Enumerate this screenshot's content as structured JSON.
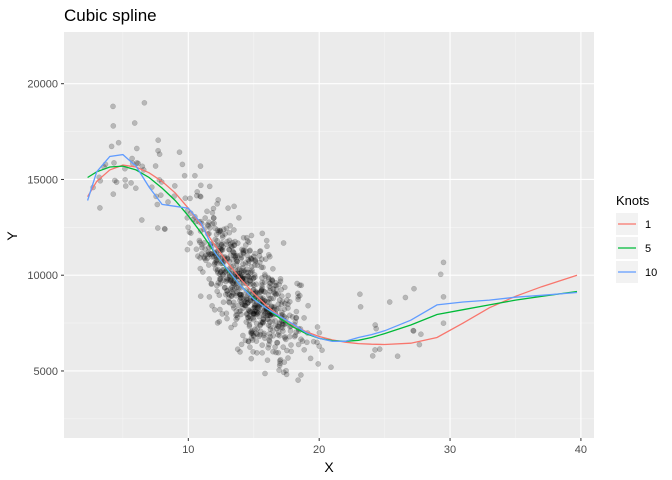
{
  "chart_data": {
    "type": "scatter",
    "title": "Cubic spline",
    "xlabel": "X",
    "ylabel": "Y",
    "xlim": [
      0.5,
      41
    ],
    "ylim": [
      1500,
      22700
    ],
    "x_ticks": [
      10,
      20,
      30,
      40
    ],
    "y_ticks": [
      5000,
      10000,
      15000,
      20000
    ],
    "x_minor_ticks": [
      5,
      15,
      25,
      35
    ],
    "y_minor_ticks": [
      2500,
      7500,
      12500,
      17500
    ],
    "grid": true,
    "legend_position": "right",
    "legend": {
      "title": "Knots",
      "entries": [
        {
          "label": "1",
          "color": "#F8766D"
        },
        {
          "label": "5",
          "color": "#00BA38"
        },
        {
          "label": "10",
          "color": "#619CFF"
        }
      ]
    },
    "points_color": "#000000",
    "points_opacity": 0.22,
    "series": [
      {
        "name": "1",
        "color": "#F8766D",
        "x": [
          2.3,
          3,
          4,
          5,
          6,
          7,
          8,
          9,
          10,
          11,
          12,
          13,
          14,
          15,
          16,
          17,
          18,
          19,
          20,
          21,
          22,
          23,
          24,
          25,
          27,
          29,
          31,
          33,
          35,
          37,
          39.7
        ],
        "y": [
          14100,
          14900,
          15500,
          15750,
          15650,
          15350,
          14900,
          14300,
          13500,
          12600,
          11600,
          10650,
          9800,
          9050,
          8400,
          7850,
          7400,
          7050,
          6800,
          6620,
          6500,
          6430,
          6400,
          6380,
          6450,
          6750,
          7500,
          8300,
          8900,
          9400,
          10000
        ]
      },
      {
        "name": "5",
        "color": "#00BA38",
        "x": [
          2.3,
          3,
          4,
          5,
          6,
          7,
          8,
          9,
          10,
          11,
          12,
          13,
          14,
          15,
          16,
          17,
          18,
          19,
          20,
          21,
          22,
          23,
          24,
          25,
          27,
          29,
          31,
          33,
          35,
          37,
          39.7
        ],
        "y": [
          15100,
          15400,
          15650,
          15700,
          15500,
          15100,
          14550,
          13900,
          13100,
          12200,
          11200,
          10250,
          9450,
          8800,
          8250,
          7750,
          7300,
          6950,
          6700,
          6580,
          6550,
          6600,
          6750,
          6950,
          7400,
          7950,
          8200,
          8450,
          8700,
          8900,
          9150
        ]
      },
      {
        "name": "10",
        "color": "#619CFF",
        "x": [
          2.3,
          3,
          4,
          5,
          6,
          7,
          8,
          9,
          10,
          11,
          12,
          13,
          14,
          15,
          16,
          17,
          18,
          19,
          20,
          21,
          22,
          23,
          24,
          25,
          27,
          29,
          31,
          33,
          35,
          37,
          39.7
        ],
        "y": [
          13900,
          15400,
          16200,
          16300,
          15700,
          14600,
          13700,
          13600,
          13500,
          12700,
          11200,
          10300,
          9450,
          8750,
          8250,
          7850,
          7450,
          7000,
          6700,
          6550,
          6550,
          6750,
          6900,
          7100,
          7650,
          8450,
          8600,
          8700,
          8850,
          8950,
          9100
        ]
      }
    ]
  }
}
